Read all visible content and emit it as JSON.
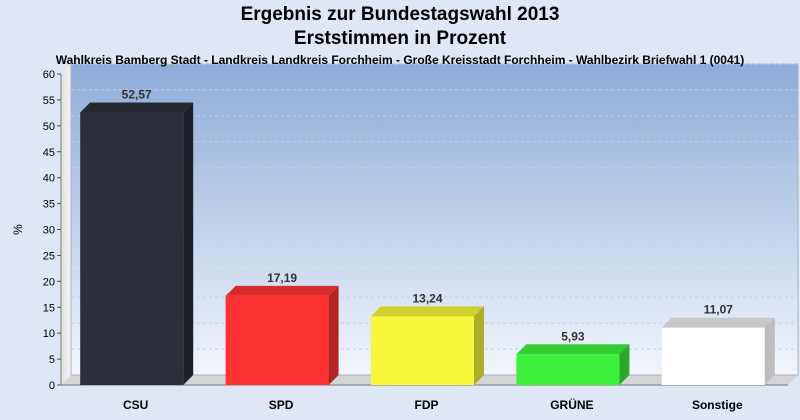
{
  "chart_data": {
    "type": "bar",
    "title": "Ergebnis zur Bundestagswahl 2013",
    "title2": "Erststimmen in Prozent",
    "subtitle": "Wahlkreis Bamberg Stadt - Landkreis Landkreis Forchheim - Große Kreisstadt Forchheim - Wahlbezirk Briefwahl 1 (0041)",
    "ylabel": "%",
    "xlabel": "",
    "ylim": [
      0,
      60
    ],
    "ytick_step": 5,
    "grid": true,
    "categories": [
      "CSU",
      "SPD",
      "FDP",
      "GRÜNE",
      "Sonstige"
    ],
    "values": [
      52.57,
      17.19,
      13.24,
      5.93,
      11.07
    ],
    "value_labels": [
      "52,57",
      "17,19",
      "13,24",
      "5,93",
      "11,07"
    ],
    "colors": [
      "#2b2f3a",
      "#ff3333",
      "#f6f63a",
      "#3cf03c",
      "#ffffff"
    ]
  }
}
